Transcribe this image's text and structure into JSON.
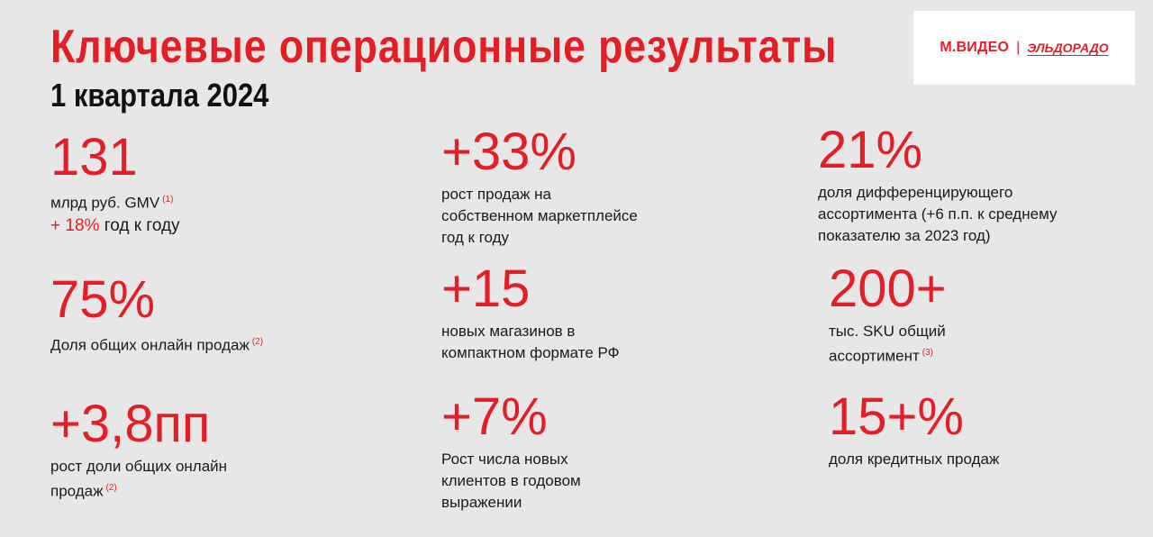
{
  "header": {
    "title": "Ключевые операционные результаты",
    "subtitle": "1 квартала 2024"
  },
  "logo": {
    "mvideo": "М.ВИДЕО",
    "separator": "|",
    "eldorado": "ЭЛЬДОРАДО"
  },
  "metrics": {
    "gmv": {
      "value": "131",
      "desc": "млрд руб. GMV",
      "footnote": "(1)",
      "yoy_value": "+ 18%",
      "yoy_text": "год к году"
    },
    "marketplace": {
      "value": "+33%",
      "line1": "рост продаж на",
      "line2": "собственном маркетплейсе",
      "line3": "год к году"
    },
    "assortment_share": {
      "value": "21%",
      "line1": "доля дифференцирующего",
      "line2": "ассортимента (+6 п.п. к среднему",
      "line3": "показателю за 2023 год)"
    },
    "online_share": {
      "value": "75%",
      "desc": "Доля общих онлайн продаж",
      "footnote": "(2)"
    },
    "stores": {
      "value": "+15",
      "line1": "новых магазинов в",
      "line2": "компактном формате РФ"
    },
    "sku": {
      "value": "200+",
      "line1": "тыс. SKU общий",
      "line2": "ассортимент",
      "footnote": "(3)"
    },
    "online_growth": {
      "value": "+3,8пп",
      "line1": "рост доли общих онлайн",
      "line2": "продаж",
      "footnote": "(2)"
    },
    "clients": {
      "value": "+7%",
      "line1": "Рост числа новых",
      "line2": "клиентов в годовом",
      "line3": "выражении"
    },
    "credit": {
      "value": "15+%",
      "desc": "доля кредитных продаж"
    }
  },
  "colors": {
    "accent": "#e31e24",
    "background": "#e7e7e7",
    "text": "#1a1a1a"
  }
}
